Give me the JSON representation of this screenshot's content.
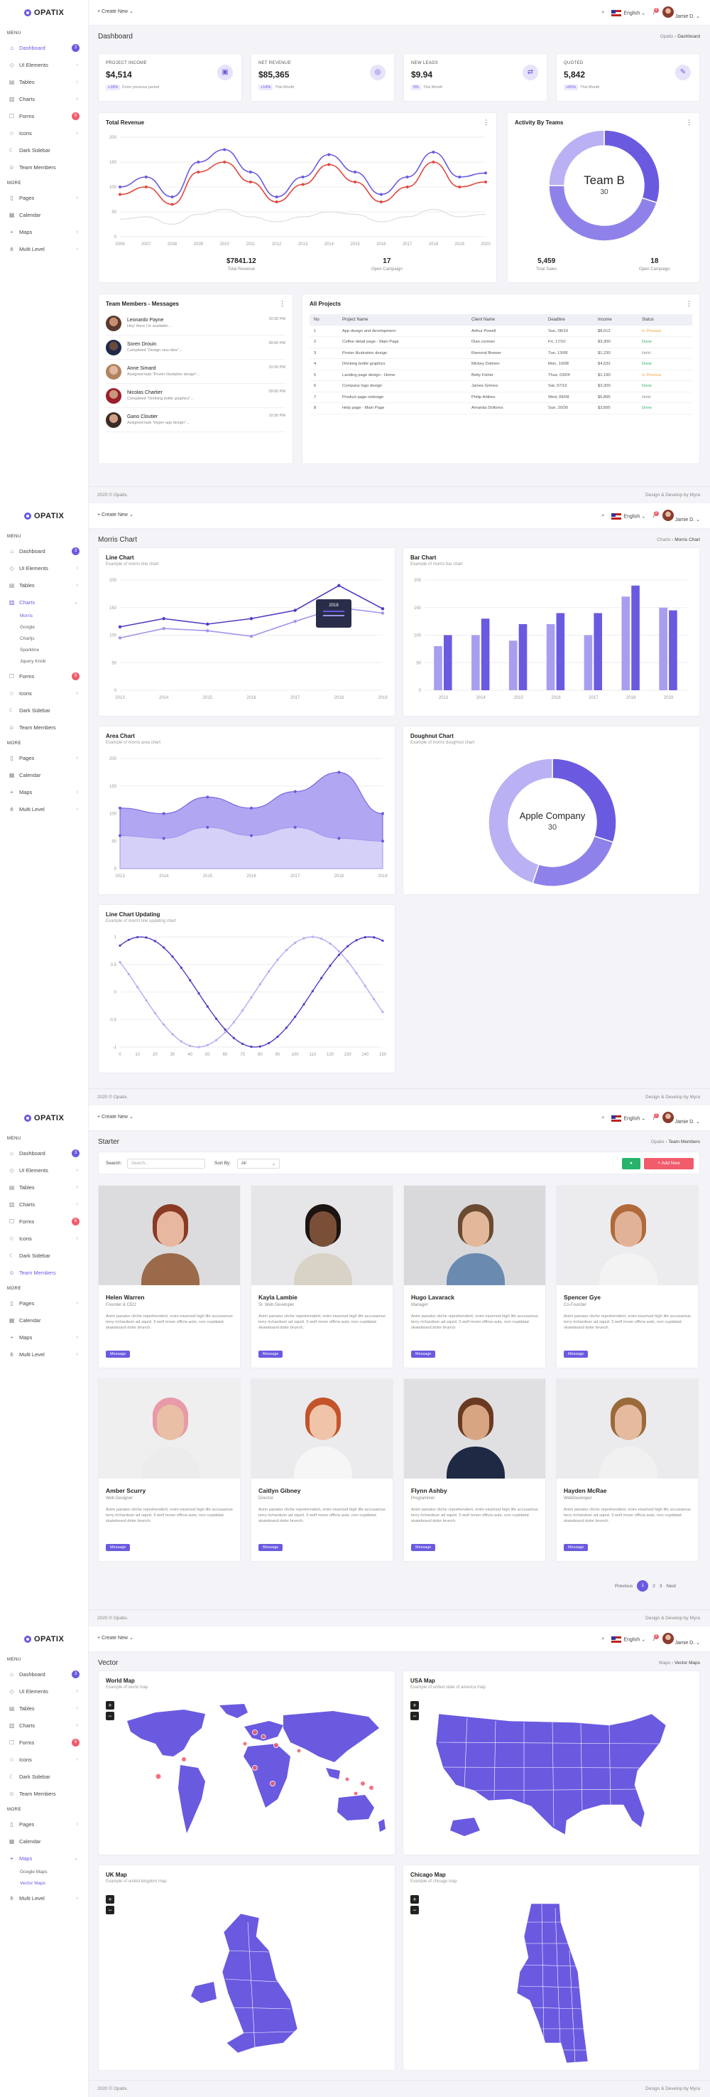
{
  "brand": "OPATIX",
  "topbar": {
    "create_new": "+ Create New",
    "language": "English",
    "user": "Jamie D.",
    "notif": "3"
  },
  "sidebar": {
    "menu_label": "MENU",
    "more_label": "MORE",
    "items": [
      "Dashboard",
      "UI Elements",
      "Tables",
      "Charts",
      "Forms",
      "Icons",
      "Dark Sidebar",
      "Team Members"
    ],
    "more": [
      "Pages",
      "Calendar",
      "Maps",
      "Multi Level"
    ],
    "dashboard_badge": "3",
    "forms_badge": "6",
    "charts_sub": [
      "Morris",
      "Google",
      "Chartjs",
      "Sparkline",
      "Jquery Knob"
    ],
    "maps_sub": [
      "Google Maps",
      "Vector Maps"
    ]
  },
  "footer": {
    "left": "2020 © Opatix.",
    "right": "Design & Develop by Myra"
  },
  "dashboard": {
    "title": "Dashboard",
    "crumb_root": "Opatix",
    "crumb_current": "Dashboard",
    "kpis": [
      {
        "label": "PROJECT INCOME",
        "value": "$4,514",
        "badge": "+18%",
        "note": "From previous period"
      },
      {
        "label": "NET REVENUE",
        "value": "$85,365",
        "badge": "+14%",
        "note": "This Month"
      },
      {
        "label": "NEW LEADS",
        "value": "$9.94",
        "badge": "0%",
        "note": "This Month"
      },
      {
        "label": "QUOTED",
        "value": "5,842",
        "badge": "+65%",
        "note": "This Month"
      }
    ],
    "revenue": {
      "title": "Total Revenue",
      "stat1_value": "$7841.12",
      "stat1_label": "Total Revenue",
      "stat2_value": "17",
      "stat2_label": "Open Campaign"
    },
    "activity": {
      "title": "Activity By Teams",
      "center_label": "Team B",
      "center_value": "30",
      "stat1_value": "5,459",
      "stat1_label": "Total Sales",
      "stat2_value": "18",
      "stat2_label": "Open Campaign"
    },
    "messages": {
      "title": "Team Members - Messages",
      "items": [
        {
          "name": "Leonardo Payne",
          "text": "Hey! there I'm available...",
          "time": "10:30 PM"
        },
        {
          "name": "Soren Drouin",
          "text": "Completed \"Design new idea\"...",
          "time": "09:00 PM"
        },
        {
          "name": "Anne Simard",
          "text": "Assigned task \"Poster illustation design\"...",
          "time": "10:30 PM"
        },
        {
          "name": "Nicolas Chartier",
          "text": "Completed \"Drinking bottle graphics\"...",
          "time": "09:00 PM"
        },
        {
          "name": "Gano Cloutier",
          "text": "Assigned task \"Hyper app design\"...",
          "time": "10:30 PM"
        }
      ]
    },
    "projects": {
      "title": "All Projects",
      "columns": [
        "No",
        "Project Name",
        "Client Name",
        "Deadline",
        "Income",
        "Status"
      ],
      "rows": [
        [
          "1",
          "App design and development",
          "Arthur Powell",
          "Sun, 08/10",
          "$8,012",
          "In Process"
        ],
        [
          "2",
          "Coffee detail page - Main Page",
          "Dian corman",
          "Fri, 17/10",
          "$3,300",
          "Done"
        ],
        [
          "3",
          "Poster illustration design",
          "Ramond Brewer",
          "Tue, 13/08",
          "$1,230",
          "Hold"
        ],
        [
          "4",
          "Drinking bottle graphics",
          "Mickey Dolmen",
          "Mon, 10/08",
          "$4,532",
          "Done"
        ],
        [
          "5",
          "Landing page design - Home",
          "Betty Fisher",
          "Thus, 03/04",
          "$1,190",
          "In Process"
        ],
        [
          "6",
          "Company logo design",
          "James Grimes",
          "Sat, 07/19",
          "$3,300",
          "Done"
        ],
        [
          "7",
          "Product page redesign",
          "Philip Artibes",
          "Wed, 09/08",
          "$6,895",
          "Hold"
        ],
        [
          "8",
          "Help page - Main Page",
          "Amanda Dollores",
          "Sun, 20/30",
          "$3,895",
          "Done"
        ]
      ]
    }
  },
  "morris": {
    "title": "Morris Chart",
    "crumb_root": "Charts",
    "crumb_current": "Morris Chart",
    "line": {
      "title": "Line Chart",
      "subtitle": "Example of morris line chart",
      "tooltip": "2018"
    },
    "bar": {
      "title": "Bar Chart",
      "subtitle": "Example of morris bar chart"
    },
    "area": {
      "title": "Area Chart",
      "subtitle": "Example of morris area chart"
    },
    "donut": {
      "title": "Doughnut Chart",
      "subtitle": "Example of morris doughnut chart",
      "center_label": "Apple Company",
      "center_value": "30"
    },
    "updating": {
      "title": "Line Chart Updating",
      "subtitle": "Example of morris line updating chart"
    }
  },
  "team": {
    "title": "Starter",
    "crumb_root": "Opatix",
    "crumb_current": "Team Members",
    "search_label": "Search:",
    "search_placeholder": "Search...",
    "sort_label": "Sort By:",
    "sort_value": "All",
    "add_label": "+ Add New",
    "msg_label": "Message",
    "desc": "Anim pariatur cliche reprehenderit, enim eiusmod high life accusamus terry richardson ad squid. 3 wolf moon officia aute, non cupidatat skateboard dolor brunch.",
    "members": [
      {
        "name": "Helen Warren",
        "role": "Founder & CEO"
      },
      {
        "name": "Kayla Lambie",
        "role": "Sr. Web Developer"
      },
      {
        "name": "Hugo Lavarack",
        "role": "Manager"
      },
      {
        "name": "Spencer Gye",
        "role": "Co-Founder"
      },
      {
        "name": "Amber Scurry",
        "role": "Web Designer"
      },
      {
        "name": "Caitlyn Gibney",
        "role": "Director"
      },
      {
        "name": "Flynn Ashby",
        "role": "Programmer"
      },
      {
        "name": "Hayden McRae",
        "role": "WebDeveloper"
      }
    ],
    "pager": {
      "prev": "Previous",
      "pages": [
        "1",
        "2",
        "3"
      ],
      "next": "Next"
    }
  },
  "maps": {
    "title": "Vector",
    "crumb_root": "Maps",
    "crumb_current": "Vector Maps",
    "world": {
      "title": "World Map",
      "subtitle": "Example of world map"
    },
    "usa": {
      "title": "USA Map",
      "subtitle": "Example of united state of america map"
    },
    "uk": {
      "title": "UK Map",
      "subtitle": "Example of united kingdom map"
    },
    "chicago": {
      "title": "Chicago Map",
      "subtitle": "Example of chicago map"
    }
  },
  "chart_data": [
    {
      "type": "line",
      "title": "Total Revenue",
      "x": [
        "2006",
        "2007",
        "2008",
        "2009",
        "2010",
        "2011",
        "2012",
        "2013",
        "2014",
        "2015",
        "2016",
        "2017",
        "2018",
        "2019",
        "2020"
      ],
      "ylim": [
        0,
        200
      ],
      "series": [
        {
          "values": [
            100,
            120,
            80,
            150,
            175,
            130,
            80,
            120,
            165,
            130,
            85,
            120,
            170,
            120,
            128
          ]
        },
        {
          "values": [
            85,
            100,
            65,
            130,
            150,
            110,
            70,
            105,
            145,
            110,
            70,
            100,
            150,
            100,
            110
          ]
        },
        {
          "values": [
            35,
            40,
            25,
            45,
            55,
            40,
            30,
            40,
            50,
            45,
            30,
            40,
            55,
            40,
            45
          ]
        }
      ]
    },
    {
      "type": "pie",
      "title": "Activity By Teams",
      "values": [
        30,
        45,
        25
      ]
    },
    {
      "type": "line",
      "title": "Line Chart",
      "x": [
        "2013",
        "2014",
        "2015",
        "2016",
        "2017",
        "2018",
        "2019"
      ],
      "ylim": [
        0,
        200
      ],
      "series": [
        {
          "values": [
            115,
            130,
            120,
            130,
            145,
            190,
            148
          ]
        },
        {
          "values": [
            95,
            112,
            108,
            98,
            125,
            150,
            140
          ]
        }
      ]
    },
    {
      "type": "bar",
      "title": "Bar Chart",
      "categories": [
        "2013",
        "2014",
        "2015",
        "2016",
        "2017",
        "2018",
        "2019"
      ],
      "ylim": [
        0,
        200
      ],
      "series": [
        {
          "values": [
            80,
            100,
            90,
            120,
            100,
            170,
            150
          ]
        },
        {
          "values": [
            100,
            130,
            120,
            140,
            140,
            190,
            145
          ]
        }
      ]
    },
    {
      "type": "area",
      "title": "Area Chart",
      "x": [
        "2013",
        "2014",
        "2015",
        "2016",
        "2017",
        "2018",
        "2019"
      ],
      "ylim": [
        0,
        200
      ],
      "series": [
        {
          "values": [
            110,
            100,
            130,
            110,
            140,
            175,
            100
          ]
        },
        {
          "values": [
            60,
            55,
            75,
            60,
            75,
            55,
            50
          ]
        }
      ]
    },
    {
      "type": "pie",
      "title": "Doughnut Chart",
      "values": [
        30,
        25,
        45
      ]
    },
    {
      "type": "line",
      "title": "Line Chart Updating",
      "x": [
        "0",
        "10",
        "20",
        "30",
        "40",
        "50",
        "60",
        "70",
        "80",
        "90",
        "100",
        "110",
        "120",
        "130",
        "140",
        "150"
      ],
      "ylim": [
        -1,
        1
      ]
    }
  ]
}
